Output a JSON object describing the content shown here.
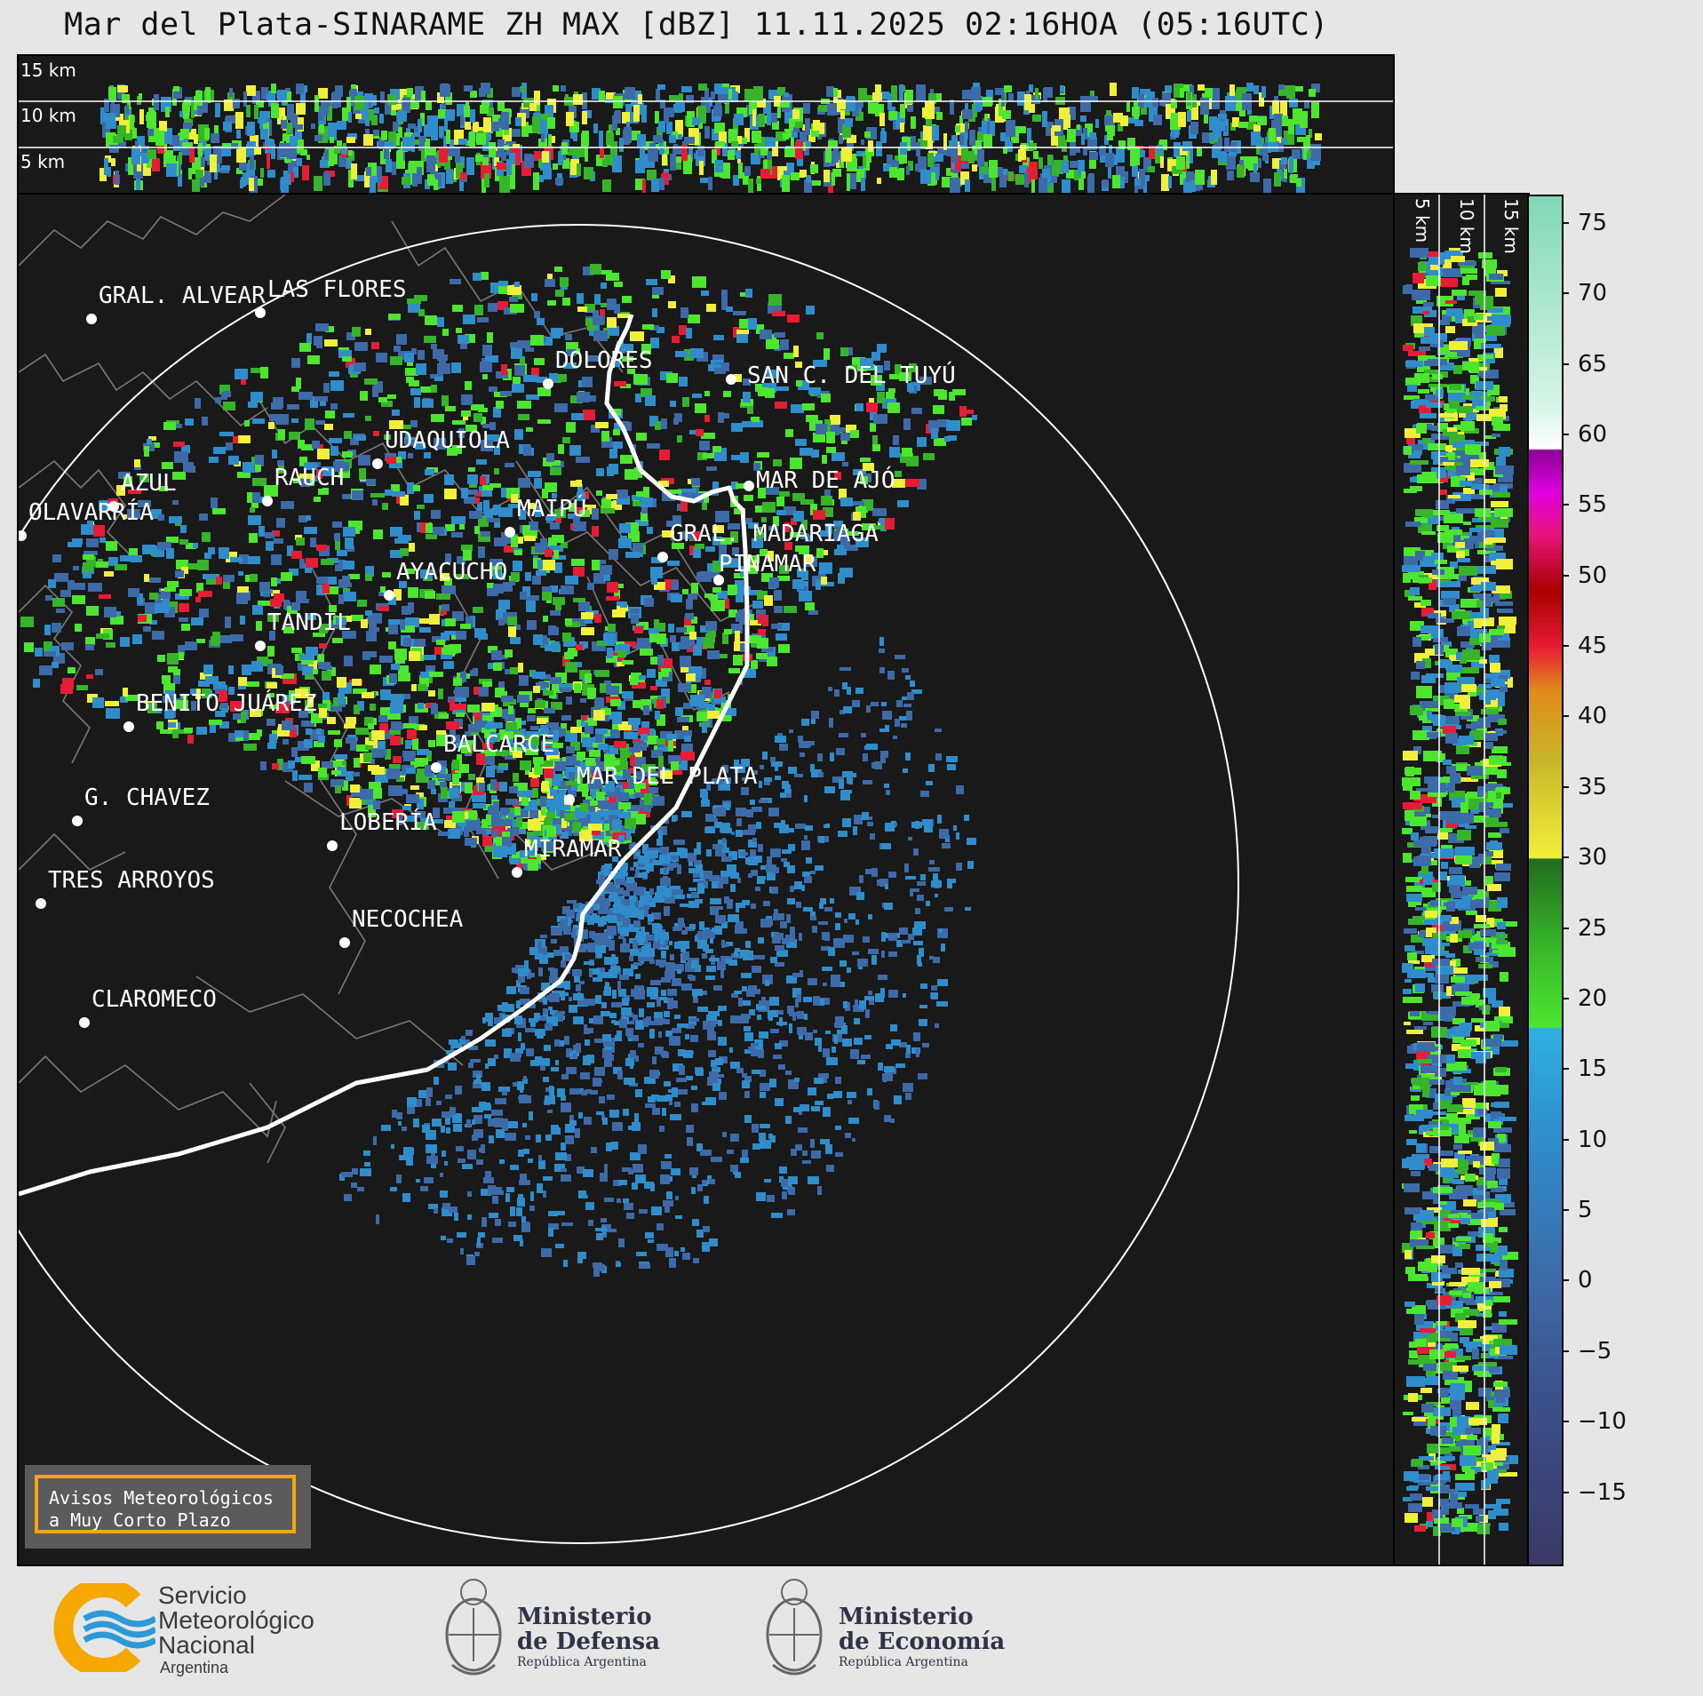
{
  "title": "Mar del Plata-SINARAME ZH MAX [dBZ] 11.11.2025 02:16HOA (05:16UTC)",
  "top_panel": {
    "height_labels": [
      "15 km",
      "10 km",
      "5 km"
    ]
  },
  "right_panel": {
    "height_labels": [
      "5 km",
      "10 km",
      "15 km"
    ]
  },
  "colorbar": {
    "ticks": [
      "75",
      "70",
      "65",
      "60",
      "55",
      "50",
      "45",
      "40",
      "35",
      "30",
      "25",
      "20",
      "15",
      "10",
      "5",
      "0",
      "−5",
      "−10",
      "−15"
    ],
    "tick_values": [
      75,
      70,
      65,
      60,
      55,
      50,
      45,
      40,
      35,
      30,
      25,
      20,
      15,
      10,
      5,
      0,
      -5,
      -10,
      -15
    ],
    "range": [
      -20,
      77
    ],
    "stops": [
      {
        "v": -20,
        "c": "#3a3a66"
      },
      {
        "v": -10,
        "c": "#3c4c86"
      },
      {
        "v": 0,
        "c": "#3d6aa8"
      },
      {
        "v": 10,
        "c": "#2f8dcb"
      },
      {
        "v": 18,
        "c": "#2eb0e0"
      },
      {
        "v": 18.1,
        "c": "#4ce62e"
      },
      {
        "v": 24,
        "c": "#36b42a"
      },
      {
        "v": 30,
        "c": "#236b1e"
      },
      {
        "v": 30.1,
        "c": "#f0f03a"
      },
      {
        "v": 37,
        "c": "#c9b528"
      },
      {
        "v": 42,
        "c": "#e08a1a"
      },
      {
        "v": 45,
        "c": "#e81c34"
      },
      {
        "v": 49,
        "c": "#a80000"
      },
      {
        "v": 53,
        "c": "#e6147a"
      },
      {
        "v": 56,
        "c": "#e000e0"
      },
      {
        "v": 59,
        "c": "#8c0096"
      },
      {
        "v": 59.1,
        "c": "#ffffff"
      },
      {
        "v": 62,
        "c": "#d8f5ea"
      },
      {
        "v": 77,
        "c": "#7fd8b8"
      }
    ]
  },
  "cities": [
    {
      "name": "GRAL. ALVEAR"
    },
    {
      "name": "LAS FLORES"
    },
    {
      "name": "DOLORES"
    },
    {
      "name": "SAN C. DEL TUYÚ"
    },
    {
      "name": "UDAQUIOLA"
    },
    {
      "name": "MAR DE AJÓ"
    },
    {
      "name": "AZUL"
    },
    {
      "name": "RAUCH"
    },
    {
      "name": "MAIPÚ"
    },
    {
      "name": "OLAVARRÍA"
    },
    {
      "name": "GRAL. MADARIAGA"
    },
    {
      "name": "PINAMAR"
    },
    {
      "name": "AYACUCHO"
    },
    {
      "name": "TANDIL"
    },
    {
      "name": "BENITO JUÁREZ"
    },
    {
      "name": "BALCARCE"
    },
    {
      "name": "MAR DEL PLATA"
    },
    {
      "name": "G. CHAVEZ"
    },
    {
      "name": "LOBERÍA"
    },
    {
      "name": "MIRAMAR"
    },
    {
      "name": "TRES ARROYOS"
    },
    {
      "name": "NECOCHEA"
    },
    {
      "name": "CLAROMECO"
    }
  ],
  "badge": {
    "line1": "Avisos Meteorológicos",
    "line2": "a Muy Corto Plazo"
  },
  "logos": {
    "smn": {
      "line1": "Servicio",
      "line2": "Meteorológico",
      "line3": "Nacional",
      "line4": "Argentina"
    },
    "defensa": {
      "line1": "Ministerio",
      "line2": "de Defensa",
      "line3": "República Argentina"
    },
    "economia": {
      "line1": "Ministerio",
      "line2": "de Economía",
      "line3": "República Argentina"
    }
  }
}
